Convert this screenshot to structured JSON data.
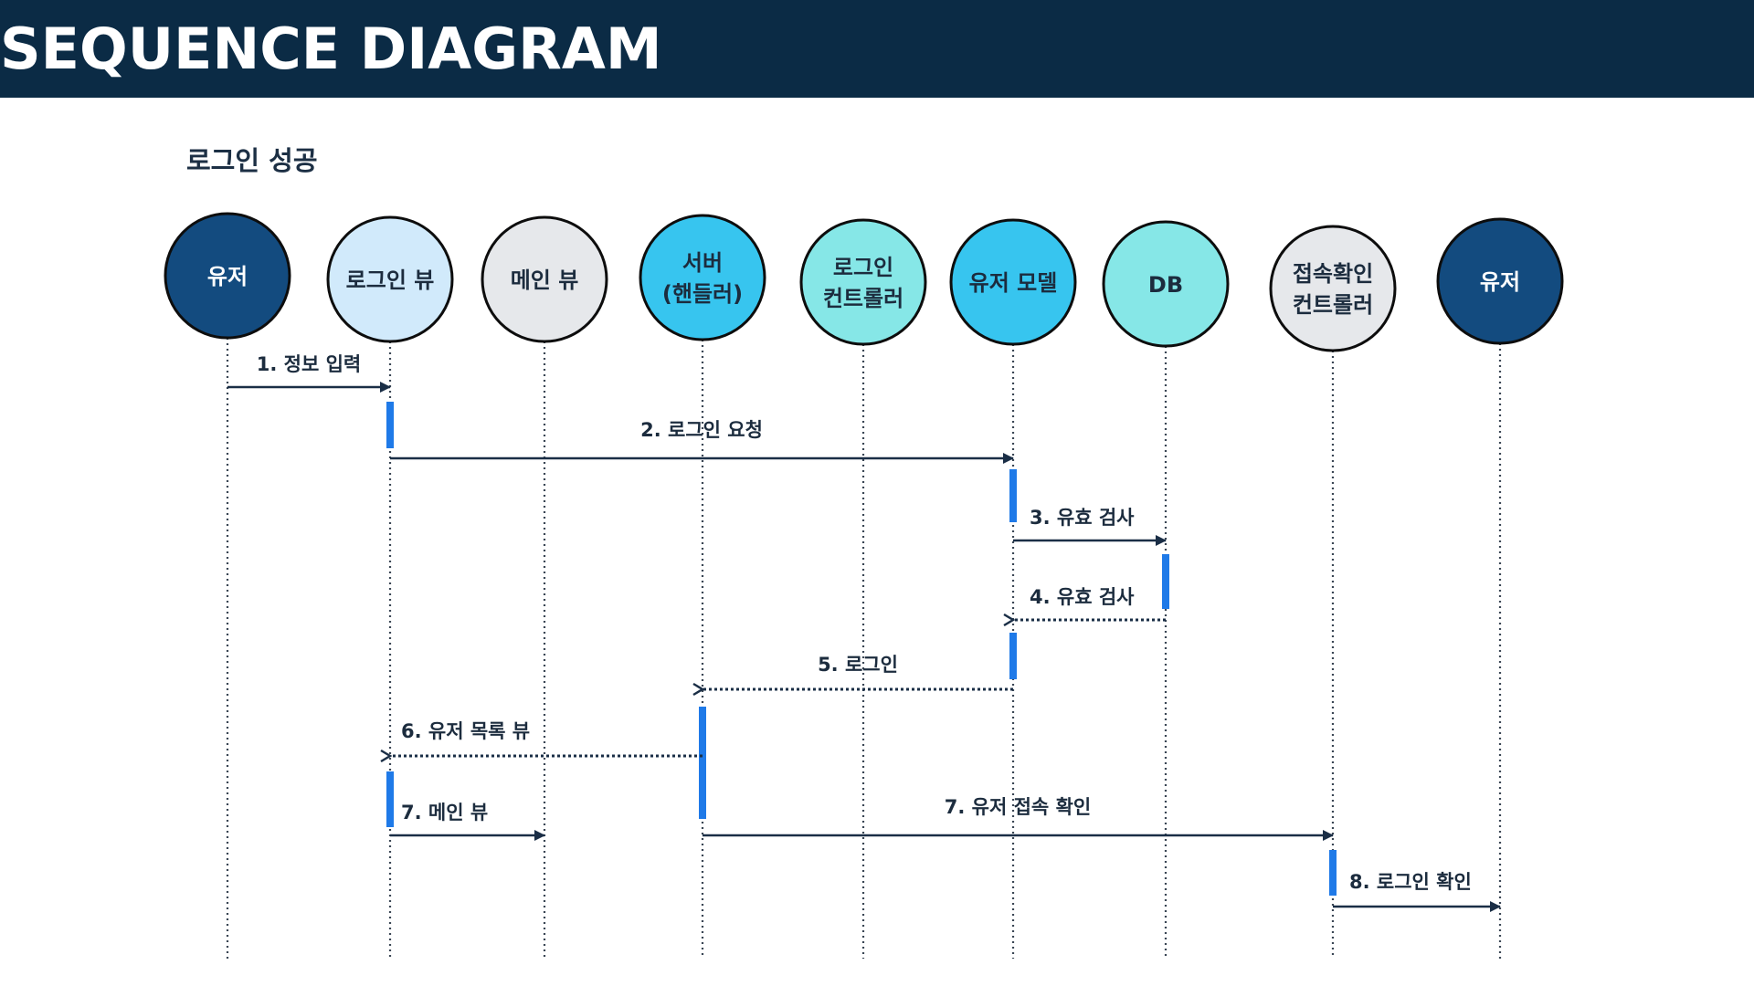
{
  "header": {
    "title": "SEQUENCE DIAGRAM"
  },
  "diagram": {
    "title": "로그인 성공",
    "colors": {
      "header_bg": "#0b2b45",
      "arrow": "#1a2e46",
      "activation": "#1f7ae8",
      "circle_stroke": "#0d0d0d",
      "lifeline": "#3a4654"
    },
    "participants": [
      {
        "id": "user1",
        "lines": [
          "유저"
        ],
        "fill": "#134b7f",
        "text_color": "#ffffff"
      },
      {
        "id": "login-view",
        "lines": [
          "로그인 뷰"
        ],
        "fill": "#d1eafb",
        "text_color": "#1c2c3e"
      },
      {
        "id": "main-view",
        "lines": [
          "메인 뷰"
        ],
        "fill": "#e6e8eb",
        "text_color": "#1c2c3e"
      },
      {
        "id": "server-handler",
        "lines": [
          "서버",
          "(핸들러)"
        ],
        "fill": "#37c5ef",
        "text_color": "#1c2c3e"
      },
      {
        "id": "login-controller",
        "lines": [
          "로그인",
          "컨트롤러"
        ],
        "fill": "#86e7e7",
        "text_color": "#1c2c3e"
      },
      {
        "id": "user-model",
        "lines": [
          "유저 모델"
        ],
        "fill": "#37c5ef",
        "text_color": "#1c2c3e"
      },
      {
        "id": "db",
        "lines": [
          "DB"
        ],
        "fill": "#86e7e7",
        "text_color": "#1c2c3e"
      },
      {
        "id": "access-controller",
        "lines": [
          "접속확인",
          "컨트롤러"
        ],
        "fill": "#e6e8eb",
        "text_color": "#1c2c3e"
      },
      {
        "id": "user2",
        "lines": [
          "유저"
        ],
        "fill": "#134b7f",
        "text_color": "#ffffff"
      }
    ],
    "messages": [
      {
        "label": "1. 정보 입력",
        "from": 0,
        "to": 1,
        "style": "solid"
      },
      {
        "label": "2. 로그인 요청",
        "from": 1,
        "to": 5,
        "style": "solid"
      },
      {
        "label": "3. 유효 검사",
        "from": 5,
        "to": 6,
        "style": "solid"
      },
      {
        "label": "4. 유효 검사",
        "from": 6,
        "to": 5,
        "style": "dashed"
      },
      {
        "label": "5. 로그인",
        "from": 5,
        "to": 3,
        "style": "dashed"
      },
      {
        "label": "6. 유저 목록 뷰",
        "from": 3,
        "to": 1,
        "style": "dashed"
      },
      {
        "label": "7. 메인 뷰",
        "from": 1,
        "to": 2,
        "style": "solid"
      },
      {
        "label": "7. 유저 접속 확인",
        "from": 3,
        "to": 7,
        "style": "solid"
      },
      {
        "label": "8. 로그인 확인",
        "from": 7,
        "to": 8,
        "style": "solid"
      }
    ],
    "activations": [
      {
        "participant": 1,
        "after_message": 0
      },
      {
        "participant": 5,
        "after_message": 1
      },
      {
        "participant": 6,
        "after_message": 2
      },
      {
        "participant": 5,
        "after_message": 3
      },
      {
        "participant": 3,
        "after_message": 4
      },
      {
        "participant": 1,
        "after_message": 5
      },
      {
        "participant": 7,
        "after_message": 7
      }
    ]
  }
}
